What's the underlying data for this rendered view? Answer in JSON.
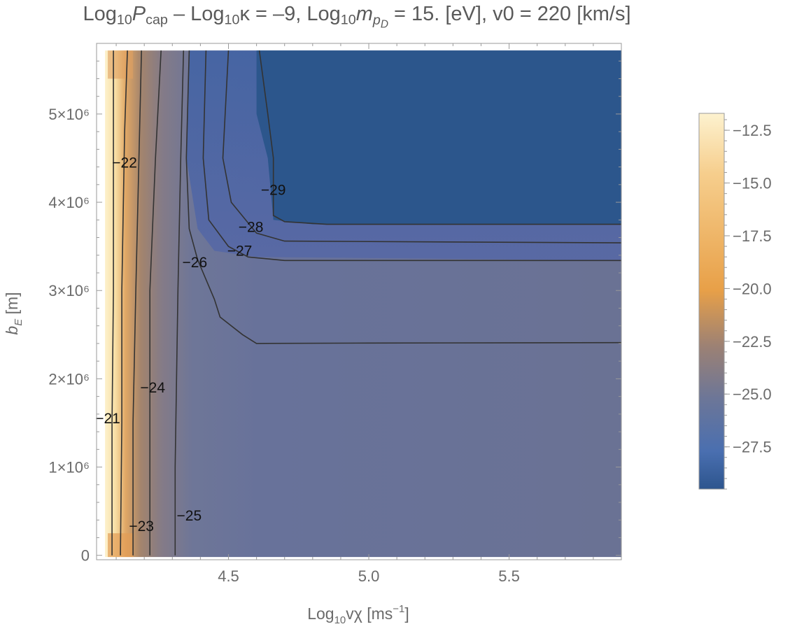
{
  "chart_data": {
    "type": "heatmap",
    "title": {
      "part1": "Log",
      "sub1": "10",
      "part2": "P",
      "sub2": "cap",
      "part3": " – Log",
      "sub3": "10",
      "part4": "κ = –9, Log",
      "sub4": "10",
      "part5": "m",
      "sub5": "p",
      "subsub5": "D",
      "part6": " = 15. [eV], v0 = 220 [km/s]"
    },
    "xlabel": {
      "main": "Log",
      "sub": "10",
      "rest": "vχ [ms",
      "sup": "−1",
      "end": "]"
    },
    "ylabel": {
      "main": "b",
      "sub": "E",
      "rest": " [m]"
    },
    "xlim": [
      4.03,
      5.9
    ],
    "ylim": [
      -50000,
      5800000
    ],
    "x_ticks": [
      {
        "value": 4.5,
        "label": "4.5"
      },
      {
        "value": 5.0,
        "label": "5.0"
      },
      {
        "value": 5.5,
        "label": "5.5"
      }
    ],
    "y_ticks": [
      {
        "value": 0,
        "label": "0"
      },
      {
        "value": 1000000,
        "label": "1×10⁶"
      },
      {
        "value": 2000000,
        "label": "2×10⁶"
      },
      {
        "value": 3000000,
        "label": "3×10⁶"
      },
      {
        "value": 4000000,
        "label": "4×10⁶"
      },
      {
        "value": 5000000,
        "label": "5×10⁶"
      }
    ],
    "colorbar": {
      "range": [
        -29.5,
        -11.7
      ],
      "ticks": [
        {
          "value": -12.5,
          "label": "−12.5"
        },
        {
          "value": -15.0,
          "label": "−15.0"
        },
        {
          "value": -17.5,
          "label": "−17.5"
        },
        {
          "value": -20.0,
          "label": "−20.0"
        },
        {
          "value": -22.5,
          "label": "−22.5"
        },
        {
          "value": -25.0,
          "label": "−25.0"
        },
        {
          "value": -27.5,
          "label": "−27.5"
        }
      ],
      "colors": [
        "#fdf2cf",
        "#f6ce8d",
        "#e8a048",
        "#9c8174",
        "#6c7698",
        "#4a6fb0",
        "#2d558e"
      ]
    },
    "contours": [
      {
        "label": "−21",
        "label_at": [
          4.07,
          1550000
        ],
        "points": [
          [
            4.09,
            5720000
          ],
          [
            4.09,
            3000000
          ],
          [
            4.085,
            1500000
          ],
          [
            4.085,
            0
          ]
        ]
      },
      {
        "label": "−22",
        "label_at": [
          4.13,
          4450000
        ],
        "points": [
          [
            4.14,
            5720000
          ],
          [
            4.13,
            4800000
          ],
          [
            4.12,
            3000000
          ],
          [
            4.12,
            1500000
          ],
          [
            4.115,
            0
          ]
        ]
      },
      {
        "label": "−23",
        "label_at": [
          4.19,
          330000
        ],
        "points": [
          [
            4.19,
            5720000
          ],
          [
            4.17,
            3000000
          ],
          [
            4.16,
            1500000
          ],
          [
            4.16,
            0
          ]
        ]
      },
      {
        "label": "−24",
        "label_at": [
          4.23,
          1900000
        ],
        "points": [
          [
            4.26,
            5720000
          ],
          [
            4.24,
            4500000
          ],
          [
            4.22,
            3000000
          ],
          [
            4.22,
            2000000
          ],
          [
            4.22,
            0
          ]
        ]
      },
      {
        "label": "−25",
        "label_at": [
          4.36,
          450000
        ],
        "points": [
          [
            4.34,
            5720000
          ],
          [
            4.33,
            4500000
          ],
          [
            4.32,
            3000000
          ],
          [
            4.31,
            1000000
          ],
          [
            4.31,
            0
          ]
        ]
      },
      {
        "label": "−26",
        "label_at": [
          4.38,
          3320000
        ],
        "points": [
          [
            4.36,
            5720000
          ],
          [
            4.35,
            4500000
          ],
          [
            4.36,
            3700000
          ],
          [
            4.39,
            3350000
          ],
          [
            4.45,
            2900000
          ],
          [
            4.47,
            2700000
          ],
          [
            4.55,
            2500000
          ],
          [
            4.6,
            2400000
          ],
          [
            5.0,
            2405000
          ],
          [
            5.9,
            2410000
          ]
        ]
      },
      {
        "label": "−27",
        "label_at": [
          4.54,
          3450000
        ],
        "points": [
          [
            4.42,
            5720000
          ],
          [
            4.41,
            4500000
          ],
          [
            4.43,
            3800000
          ],
          [
            4.5,
            3500000
          ],
          [
            4.57,
            3380000
          ],
          [
            4.7,
            3340000
          ],
          [
            5.9,
            3340000
          ]
        ]
      },
      {
        "label": "−28",
        "label_at": [
          4.58,
          3720000
        ],
        "points": [
          [
            4.5,
            5720000
          ],
          [
            4.48,
            4500000
          ],
          [
            4.51,
            4000000
          ],
          [
            4.6,
            3650000
          ],
          [
            4.7,
            3560000
          ],
          [
            5.9,
            3540000
          ]
        ]
      },
      {
        "label": "−29",
        "label_at": [
          4.66,
          4140000
        ],
        "points": [
          [
            4.61,
            5720000
          ],
          [
            4.64,
            5000000
          ],
          [
            4.66,
            4500000
          ],
          [
            4.66,
            3850000
          ],
          [
            4.7,
            3780000
          ],
          [
            4.85,
            3750000
          ],
          [
            5.9,
            3750000
          ]
        ]
      }
    ]
  }
}
